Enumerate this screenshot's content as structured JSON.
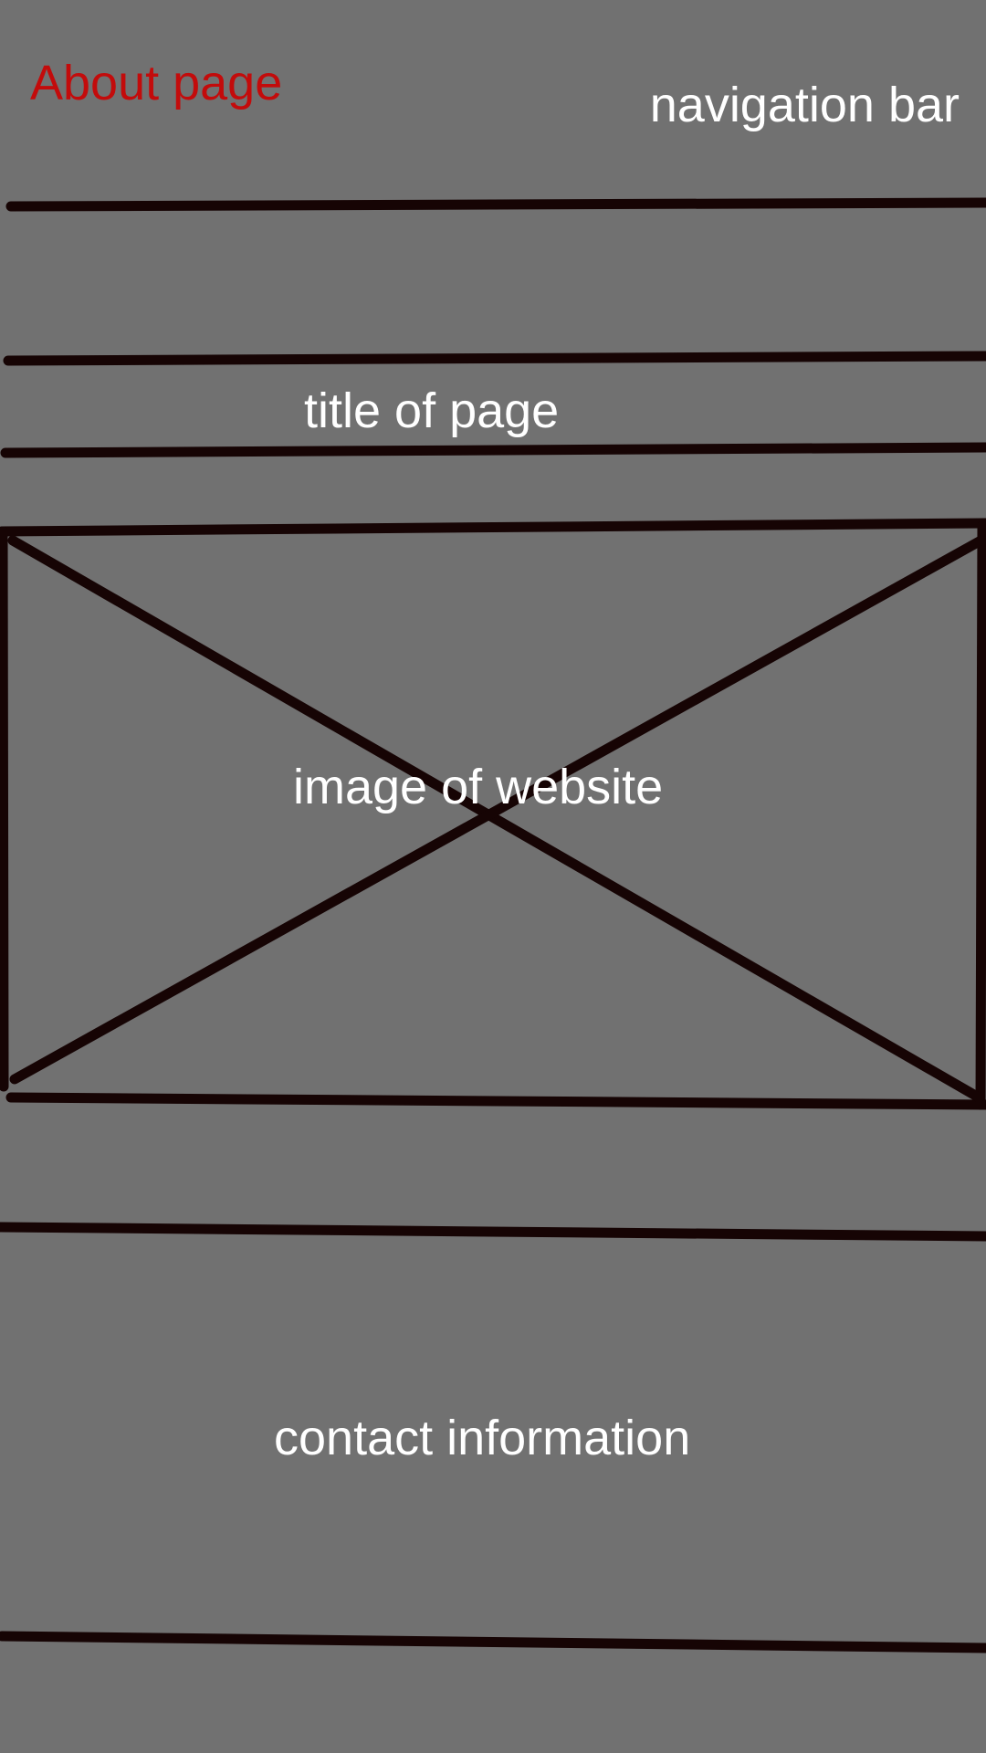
{
  "page_heading": "About page",
  "navigation_label": "navigation bar",
  "title_label": "title of page",
  "image_label": "image of website",
  "contact_label": "contact information",
  "colors": {
    "background": "#717171",
    "line": "#160404",
    "heading_text": "#c30b0b",
    "label_text": "#ffffff"
  }
}
